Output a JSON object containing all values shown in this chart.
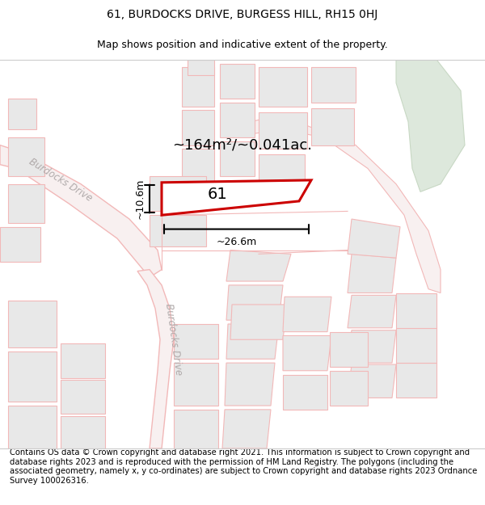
{
  "title_line1": "61, BURDOCKS DRIVE, BURGESS HILL, RH15 0HJ",
  "title_line2": "Map shows position and indicative extent of the property.",
  "footer_text": "Contains OS data © Crown copyright and database right 2021. This information is subject to Crown copyright and database rights 2023 and is reproduced with the permission of HM Land Registry. The polygons (including the associated geometry, namely x, y co-ordinates) are subject to Crown copyright and database rights 2023 Ordnance Survey 100026316.",
  "area_text": "~164m²/~0.041ac.",
  "label_text": "61",
  "width_label": "~26.6m",
  "height_label": "~10.6m",
  "bg_color": "#ffffff",
  "map_bg": "#ffffff",
  "road_color": "#f2b8b8",
  "plot_fill": "#e8e8e8",
  "highlight_color": "#cc0000",
  "road_label_color": "#b8b0b0",
  "green_fill": "#dde8dc",
  "green_edge": "#c8d8c4",
  "title_fontsize": 10,
  "footer_fontsize": 7.2,
  "map_xlim": [
    0,
    600
  ],
  "map_ylim": [
    0,
    500
  ]
}
